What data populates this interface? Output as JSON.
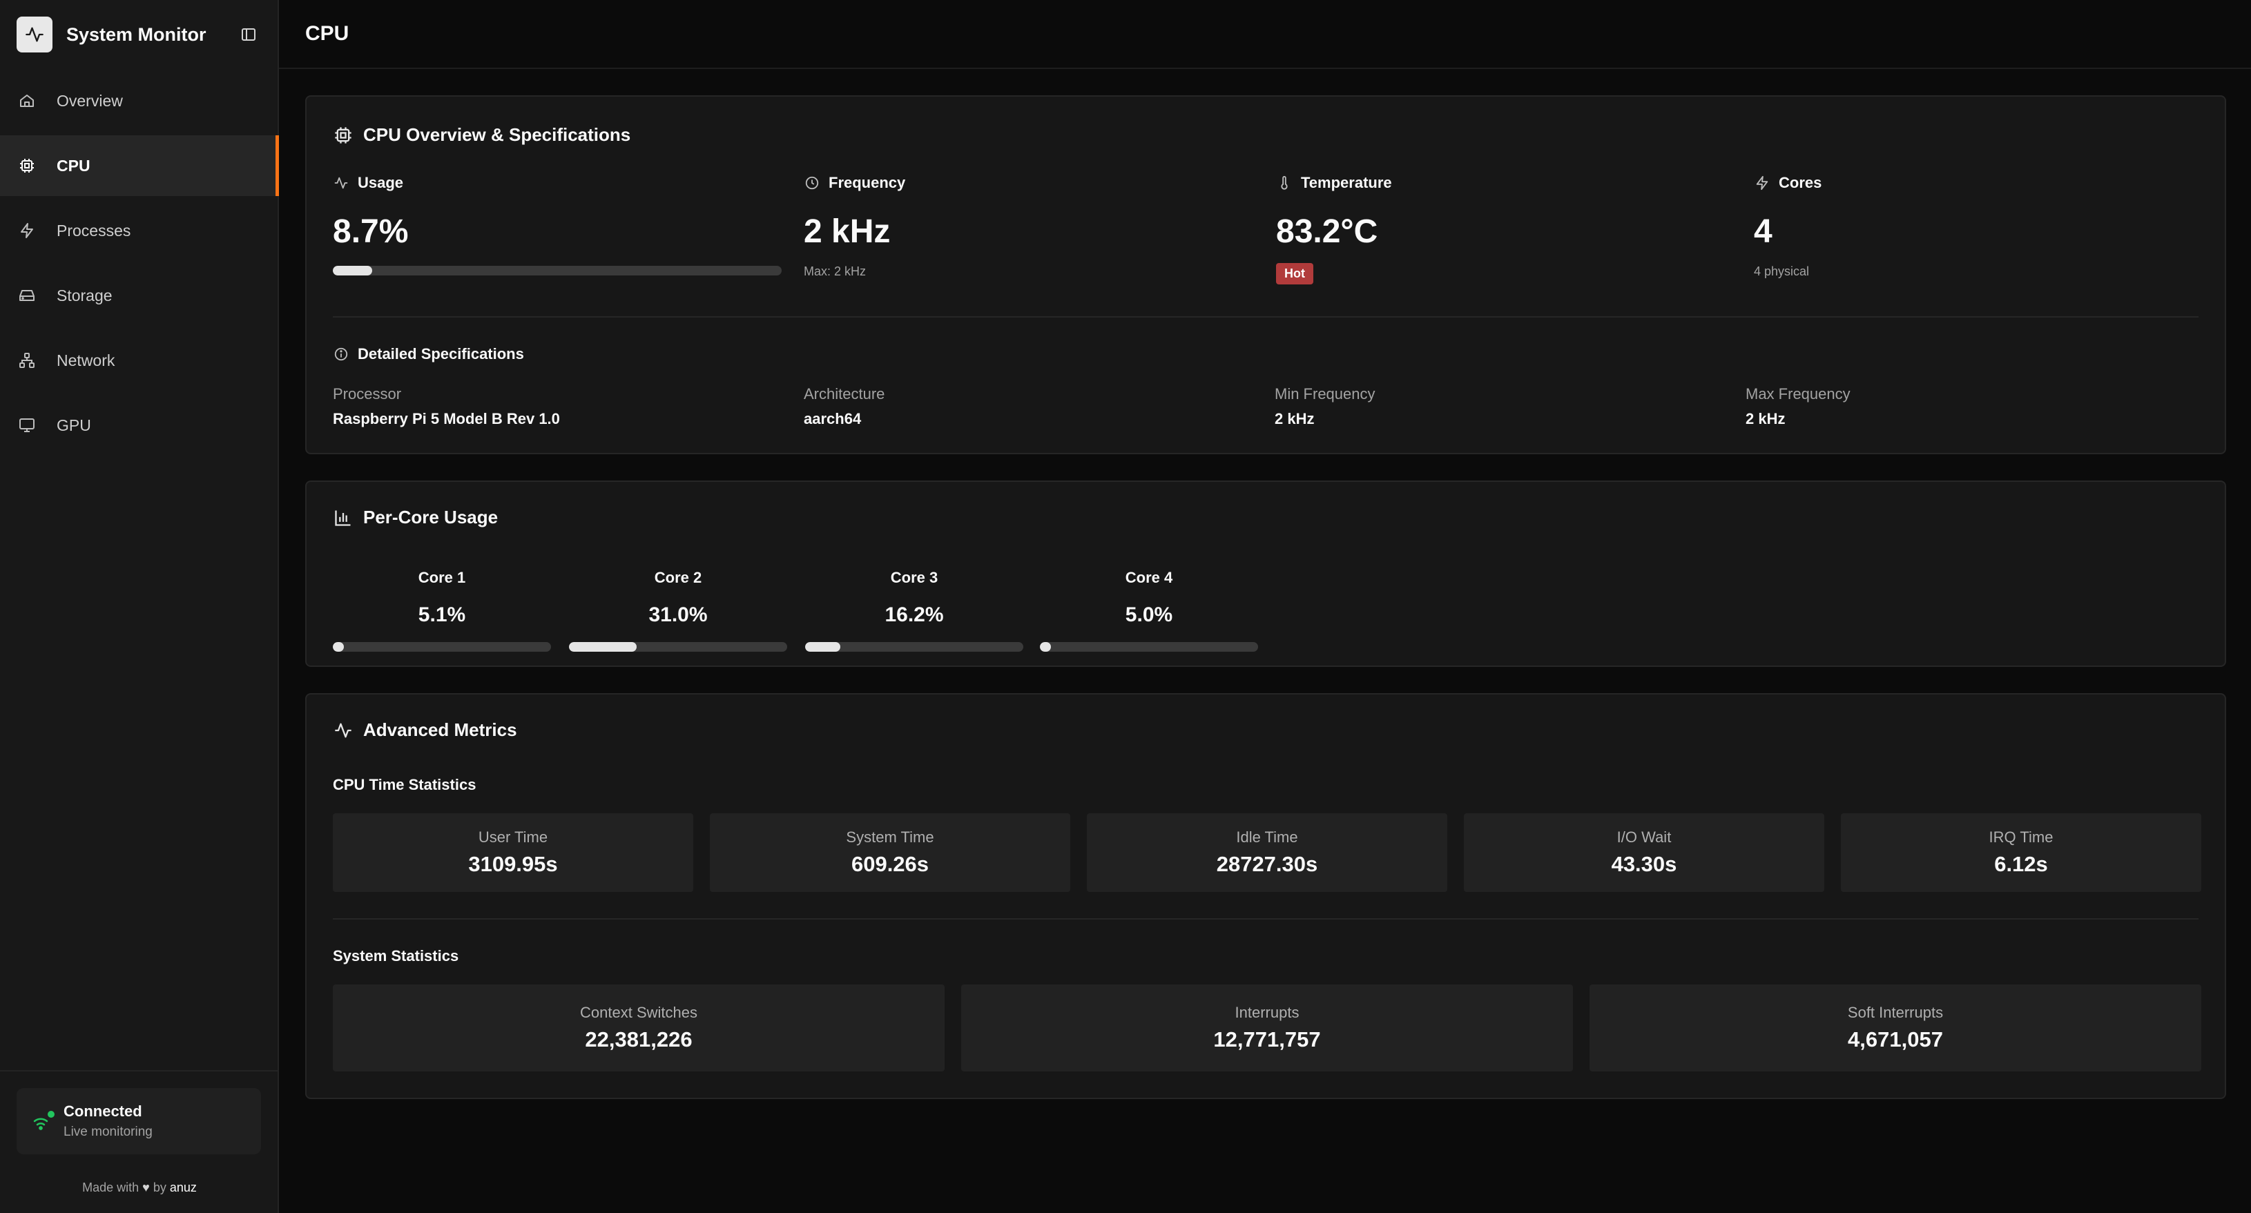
{
  "app": {
    "title": "System Monitor"
  },
  "sidebar": {
    "items": [
      {
        "label": "Overview",
        "icon": "home-icon"
      },
      {
        "label": "CPU",
        "icon": "cpu-icon",
        "active": true
      },
      {
        "label": "Processes",
        "icon": "bolt-icon"
      },
      {
        "label": "Storage",
        "icon": "hard-drive-icon"
      },
      {
        "label": "Network",
        "icon": "network-icon"
      },
      {
        "label": "GPU",
        "icon": "monitor-icon"
      }
    ],
    "status": {
      "title": "Connected",
      "subtitle": "Live monitoring",
      "color": "#22c55e"
    },
    "footer": {
      "prefix": "Made with",
      "heart": "♥",
      "by": "by",
      "author": "anuz"
    }
  },
  "header": {
    "title": "CPU"
  },
  "overview": {
    "title": "CPU Overview & Specifications",
    "usage": {
      "label": "Usage",
      "value": "8.7%",
      "percent": 8.7
    },
    "frequency": {
      "label": "Frequency",
      "value": "2 kHz",
      "sub": "Max: 2 kHz"
    },
    "temperature": {
      "label": "Temperature",
      "value": "83.2°C",
      "badge": "Hot",
      "badge_color": "#b13b3b"
    },
    "cores": {
      "label": "Cores",
      "value": "4",
      "sub": "4 physical"
    },
    "details": {
      "title": "Detailed Specifications",
      "items": [
        {
          "label": "Processor",
          "value": "Raspberry Pi 5 Model B Rev 1.0"
        },
        {
          "label": "Architecture",
          "value": "aarch64"
        },
        {
          "label": "Min Frequency",
          "value": "2 kHz"
        },
        {
          "label": "Max Frequency",
          "value": "2 kHz"
        }
      ]
    }
  },
  "per_core": {
    "title": "Per-Core Usage",
    "cores": [
      {
        "name": "Core 1",
        "value": "5.1%",
        "percent": 5.1
      },
      {
        "name": "Core 2",
        "value": "31.0%",
        "percent": 31.0
      },
      {
        "name": "Core 3",
        "value": "16.2%",
        "percent": 16.2
      },
      {
        "name": "Core 4",
        "value": "5.0%",
        "percent": 5.0
      }
    ]
  },
  "advanced": {
    "title": "Advanced Metrics",
    "cpu_time": {
      "title": "CPU Time Statistics",
      "items": [
        {
          "label": "User Time",
          "value": "3109.95s"
        },
        {
          "label": "System Time",
          "value": "609.26s"
        },
        {
          "label": "Idle Time",
          "value": "28727.30s"
        },
        {
          "label": "I/O Wait",
          "value": "43.30s"
        },
        {
          "label": "IRQ Time",
          "value": "6.12s"
        }
      ]
    },
    "system": {
      "title": "System Statistics",
      "items": [
        {
          "label": "Context Switches",
          "value": "22,381,226"
        },
        {
          "label": "Interrupts",
          "value": "12,771,757"
        },
        {
          "label": "Soft Interrupts",
          "value": "4,671,057"
        }
      ]
    }
  },
  "colors": {
    "accent": "#f97316",
    "background": "#0b0b0b",
    "card": "#171717"
  }
}
